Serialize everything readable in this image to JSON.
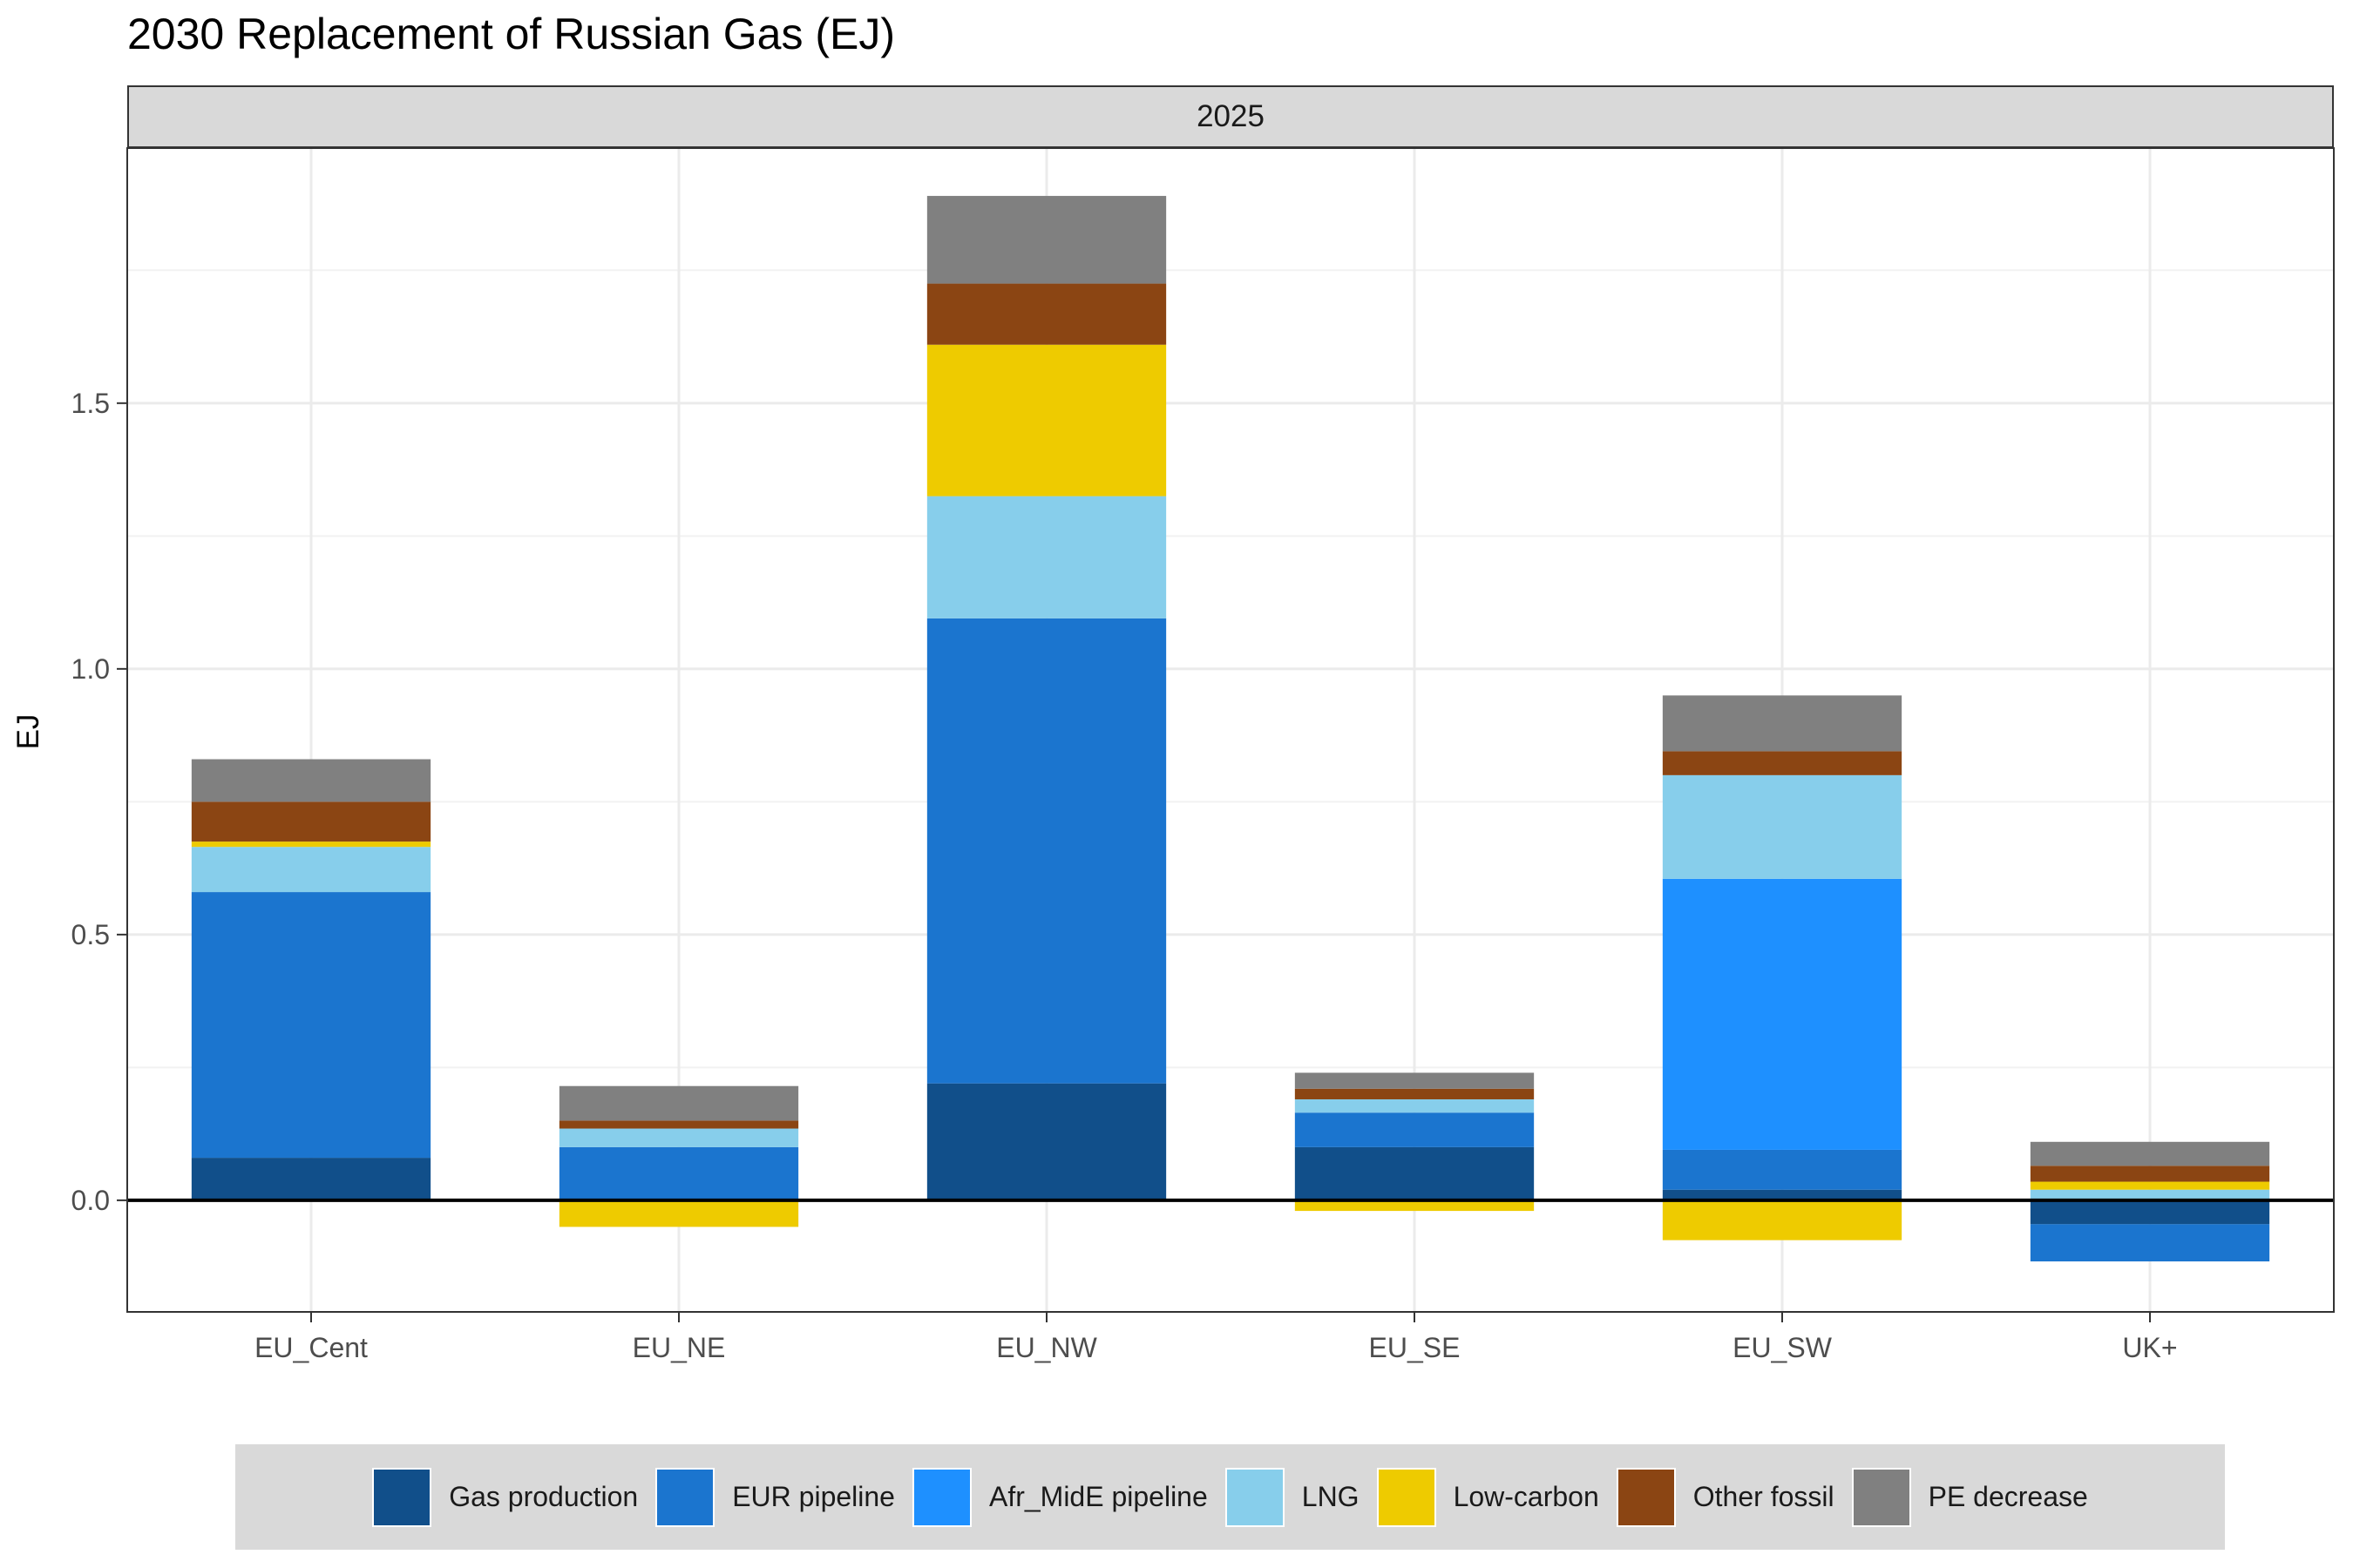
{
  "chart_data": {
    "type": "bar",
    "stacked": true,
    "title": "2030 Replacement of Russian Gas (EJ)",
    "facet": "2025",
    "xlabel": "",
    "ylabel": "EJ",
    "ylim": [
      -0.21,
      1.98
    ],
    "yticks": [
      0.0,
      0.5,
      1.0,
      1.5
    ],
    "ytick_labels": [
      "0.0",
      "0.5",
      "1.0",
      "1.5"
    ],
    "grid": true,
    "legend_position": "bottom",
    "categories": [
      "EU_Cent",
      "EU_NE",
      "EU_NW",
      "EU_SE",
      "EU_SW",
      "UK+"
    ],
    "series": [
      {
        "name": "Gas production",
        "color": "#114f8a",
        "values": [
          0.08,
          0.0,
          0.22,
          0.1,
          0.02,
          -0.045
        ]
      },
      {
        "name": "EUR pipeline",
        "color": "#1b75cf",
        "values": [
          0.5,
          0.1,
          0.875,
          0.065,
          0.075,
          -0.07
        ]
      },
      {
        "name": "Afr_MidE pipeline",
        "color": "#1e90ff",
        "values": [
          0.0,
          0.0,
          0.0,
          0.0,
          0.51,
          0.0
        ]
      },
      {
        "name": "LNG",
        "color": "#87ceeb",
        "values": [
          0.085,
          0.035,
          0.23,
          0.025,
          0.195,
          0.02
        ]
      },
      {
        "name": "Low-carbon",
        "color": "#eecb00",
        "values": [
          0.01,
          -0.05,
          0.285,
          -0.02,
          -0.075,
          0.015
        ]
      },
      {
        "name": "Other fossil",
        "color": "#8b4513",
        "values": [
          0.075,
          0.015,
          0.115,
          0.02,
          0.045,
          0.03
        ]
      },
      {
        "name": "PE decrease",
        "color": "#808080",
        "values": [
          0.08,
          0.065,
          0.165,
          0.03,
          0.105,
          0.045
        ]
      }
    ]
  }
}
